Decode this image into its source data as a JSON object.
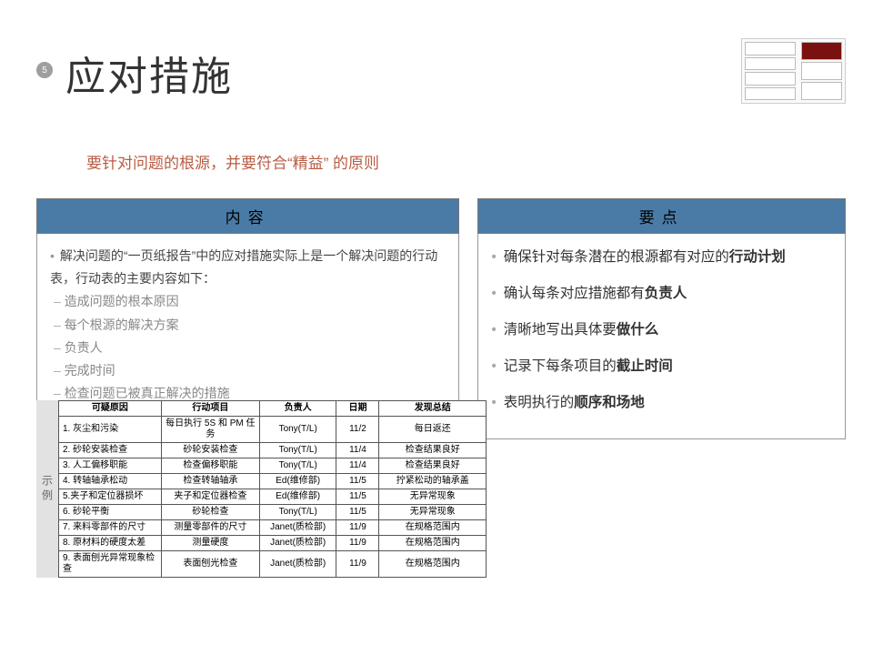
{
  "page_number": "5",
  "title": "应对措施",
  "subtitle": "要针对问题的根源，并要符合“精益” 的原则",
  "left_header": "内容",
  "right_header": "要点",
  "left_intro": "解决问题的“一页纸报告”中的应对措施实际上是一个解决问题的行动表，行动表的主要内容如下：",
  "left_items": [
    "造成问题的根本原因",
    "每个根源的解决方案",
    "负责人",
    "完成时间",
    "检查问题已被真正解决的措施"
  ],
  "right_points": [
    {
      "pre": "确保针对每条潜在的根源都有对应的",
      "bold": "行动计划",
      "post": ""
    },
    {
      "pre": "确认每条对应措施都有",
      "bold": "负责人",
      "post": ""
    },
    {
      "pre": "清晰地写出具体要",
      "bold": "做什么",
      "post": ""
    },
    {
      "pre": "记录下每条项目的",
      "bold": "截止时间",
      "post": ""
    },
    {
      "pre": "表明执行的",
      "bold": "顺序和场地",
      "post": ""
    }
  ],
  "example_label": "示例",
  "table": {
    "headers": [
      "可疑原因",
      "行动项目",
      "负责人",
      "日期",
      "发现总结"
    ],
    "rows": [
      [
        "1. 灰尘和污染",
        "每日执行 5S 和 PM 任务",
        "Tony(T/L)",
        "11/2",
        "每日返还"
      ],
      [
        "2. 砂轮安装检查",
        "砂轮安装检查",
        "Tony(T/L)",
        "11/4",
        "检查结果良好"
      ],
      [
        "3. 人工偏移职能",
        "检查偏移职能",
        "Tony(T/L)",
        "11/4",
        "检查结果良好"
      ],
      [
        "4. 转轴轴承松动",
        "检查转轴轴承",
        "Ed(维修部)",
        "11/5",
        "拧紧松动的轴承盖"
      ],
      [
        "5.夹子和定位器损坏",
        "夹子和定位器检查",
        "Ed(维修部)",
        "11/5",
        "无异常现象"
      ],
      [
        "6. 砂轮平衡",
        "砂轮检查",
        "Tony(T/L)",
        "11/5",
        "无异常现象"
      ],
      [
        "7. 来料零部件的尺寸",
        "测量零部件的尺寸",
        "Janet(质检部)",
        "11/9",
        "在规格范围内"
      ],
      [
        "8. 原材料的硬度太差",
        "测量硬度",
        "Janet(质检部)",
        "11/9",
        "在规格范围内"
      ],
      [
        "9. 表面刨光异常现象检查",
        "表面刨光检查",
        "Janet(质检部)",
        "11/9",
        "在规格范围内"
      ]
    ]
  },
  "colors": {
    "header_bg": "#4a7ba6",
    "accent_text": "#b85c44",
    "border": "#777777"
  }
}
